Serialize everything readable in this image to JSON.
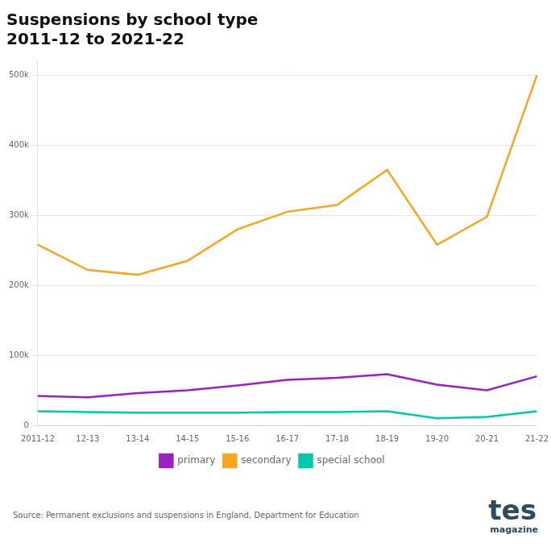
{
  "chart_data": {
    "type": "line",
    "title": "Suspensions by school type\n2011-12 to 2021-22",
    "categories": [
      "2011-12",
      "12-13",
      "13-14",
      "14-15",
      "15-16",
      "16-17",
      "17-18",
      "18-19",
      "19-20",
      "20-21",
      "21-22"
    ],
    "series": [
      {
        "name": "primary",
        "color": "#9b1fc1",
        "values": [
          42000,
          40000,
          46000,
          50000,
          57000,
          65000,
          68000,
          73000,
          58000,
          50000,
          70000
        ]
      },
      {
        "name": "secondary",
        "color": "#f5a623",
        "values": [
          258000,
          222000,
          215000,
          235000,
          280000,
          305000,
          315000,
          365000,
          258000,
          298000,
          500000
        ]
      },
      {
        "name": "special school",
        "color": "#00c9a7",
        "values": [
          20000,
          19000,
          18000,
          18000,
          18000,
          19000,
          19000,
          20000,
          10000,
          12000,
          20000
        ]
      }
    ],
    "ylim": [
      0,
      520000
    ],
    "yticks": [
      0,
      {
        "value": 100000,
        "label": "100k"
      },
      {
        "value": 200000,
        "label": "200k"
      },
      {
        "value": 300000,
        "label": "300k"
      },
      {
        "value": 400000,
        "label": "400k"
      },
      {
        "value": 500000,
        "label": "500k"
      }
    ],
    "grid": true,
    "legend": "bottom",
    "annotations": [
      {
        "text": "Source: Permanent exclusions and suspensions in England, Department for Education"
      },
      {
        "text": "tes",
        "color": "#2d4a5e"
      },
      {
        "text": "magazine",
        "color": "#2d4a5e"
      }
    ]
  }
}
